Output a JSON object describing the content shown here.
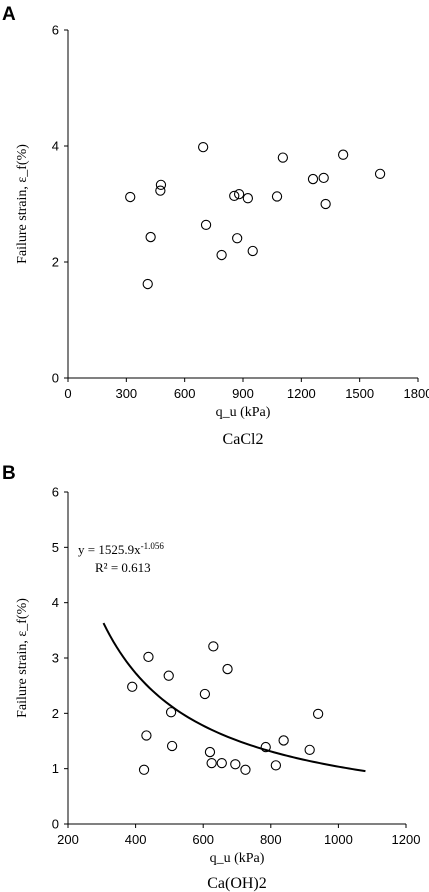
{
  "panels": [
    {
      "letter": "A",
      "ylabel": "Failure strain, ε_f(%)",
      "xlabel": "q_u (kPa)",
      "caption": "CaCl2"
    },
    {
      "letter": "B",
      "ylabel": "Failure strain, ε_f(%)",
      "xlabel": "q_u (kPa)",
      "caption": "Ca(OH)2",
      "equation": "y = 1525.9x^-1.056",
      "r2": "R² = 0.613"
    }
  ],
  "chart_data": [
    {
      "type": "scatter",
      "title": "",
      "xlabel": "qu (kPa)",
      "ylabel": "Failure strain, εf(%)",
      "xlim": [
        0,
        1800
      ],
      "ylim": [
        0,
        6
      ],
      "x_ticks": [
        0,
        300,
        600,
        900,
        1200,
        1500,
        1800
      ],
      "y_ticks": [
        0,
        2,
        4,
        6
      ],
      "grid": false,
      "series": [
        {
          "points": [
            [
              320,
              3.12
            ],
            [
              410,
              1.62
            ],
            [
              425,
              2.43
            ],
            [
              475,
              3.23
            ],
            [
              478,
              3.33
            ],
            [
              695,
              3.98
            ],
            [
              710,
              2.64
            ],
            [
              790,
              2.12
            ],
            [
              855,
              3.14
            ],
            [
              870,
              2.41
            ],
            [
              880,
              3.17
            ],
            [
              925,
              3.1
            ],
            [
              950,
              2.19
            ],
            [
              1075,
              3.13
            ],
            [
              1105,
              3.8
            ],
            [
              1260,
              3.43
            ],
            [
              1315,
              3.45
            ],
            [
              1325,
              3.0
            ],
            [
              1415,
              3.85
            ],
            [
              1605,
              3.52
            ]
          ]
        }
      ]
    },
    {
      "type": "scatter",
      "title": "",
      "xlabel": "qu (kPa)",
      "ylabel": "Failure strain, εf(%)",
      "xlim": [
        200,
        1200
      ],
      "ylim": [
        0,
        6
      ],
      "x_ticks": [
        200,
        400,
        600,
        800,
        1000,
        1200
      ],
      "y_ticks": [
        0,
        1,
        2,
        3,
        4,
        5,
        6
      ],
      "grid": false,
      "series": [
        {
          "points": [
            [
              390,
              2.48
            ],
            [
              425,
              0.98
            ],
            [
              432,
              1.6
            ],
            [
              438,
              3.02
            ],
            [
              498,
              2.68
            ],
            [
              505,
              2.02
            ],
            [
              508,
              1.41
            ],
            [
              605,
              2.35
            ],
            [
              620,
              1.3
            ],
            [
              625,
              1.1
            ],
            [
              630,
              3.21
            ],
            [
              655,
              1.1
            ],
            [
              672,
              2.8
            ],
            [
              695,
              1.08
            ],
            [
              725,
              0.98
            ],
            [
              785,
              1.39
            ],
            [
              815,
              1.06
            ],
            [
              838,
              1.51
            ],
            [
              915,
              1.34
            ],
            [
              940,
              1.99
            ]
          ]
        }
      ],
      "trendline": {
        "a": 1525.9,
        "b": -1.056,
        "x_range": [
          305,
          1080
        ]
      }
    }
  ]
}
